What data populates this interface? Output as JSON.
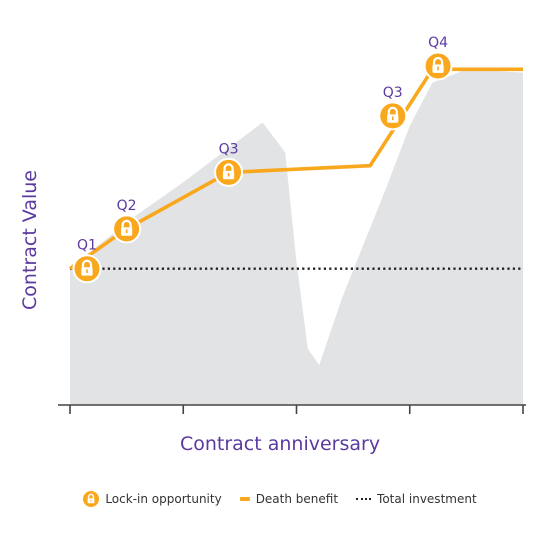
{
  "chart_data": {
    "type": "line",
    "title": "",
    "xlabel": "Contract anniversary",
    "ylabel": "Contract Value",
    "x_ticks": 5,
    "series": [
      {
        "name": "Contract value",
        "kind": "area",
        "points": [
          [
            0,
            41
          ],
          [
            0.5,
            55
          ],
          [
            1,
            67
          ],
          [
            1.7,
            85
          ],
          [
            1.9,
            76
          ],
          [
            2,
            43
          ],
          [
            2.1,
            17
          ],
          [
            2.2,
            12
          ],
          [
            2.4,
            32
          ],
          [
            2.8,
            66
          ],
          [
            3,
            84
          ],
          [
            3.2,
            97
          ],
          [
            3.5,
            101
          ],
          [
            4,
            100
          ],
          [
            4,
            0
          ],
          [
            0,
            0
          ]
        ]
      },
      {
        "name": "Death benefit",
        "kind": "line",
        "points": [
          [
            0,
            41
          ],
          [
            0.5,
            53
          ],
          [
            1.4,
            70
          ],
          [
            2.65,
            72
          ],
          [
            3.2,
            101
          ],
          [
            4,
            101
          ]
        ]
      },
      {
        "name": "Total investment",
        "kind": "dotted",
        "value": 41
      }
    ],
    "lock_ins": [
      {
        "label": "Q1",
        "x": 0.15,
        "y": 41
      },
      {
        "label": "Q2",
        "x": 0.5,
        "y": 53
      },
      {
        "label": "Q3",
        "x": 1.4,
        "y": 70
      },
      {
        "label": "Q3",
        "x": 2.85,
        "y": 87
      },
      {
        "label": "Q4",
        "x": 3.25,
        "y": 102
      }
    ],
    "colors": {
      "area": "#e2e3e5",
      "line": "#f9a71c",
      "dotted": "#222222",
      "text": "#5b3aa0",
      "axis": "#444444"
    },
    "legend": [
      {
        "type": "lock",
        "label": "Lock-in opportunity"
      },
      {
        "type": "line",
        "label": "Death benefit"
      },
      {
        "type": "dotted",
        "label": "Total investment"
      }
    ]
  }
}
